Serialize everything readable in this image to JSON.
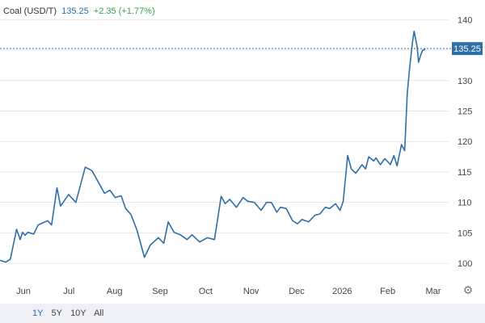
{
  "header": {
    "symbol": "Coal (USD/T)",
    "price": "135.25",
    "change": "+2.35 (+1.77%)",
    "change_color": "#3aa34a"
  },
  "ranges": {
    "items": [
      "1Y",
      "5Y",
      "10Y",
      "All"
    ],
    "active": "1Y"
  },
  "settings_icon": "gear-icon",
  "colors": {
    "line": "#2f6fa8",
    "grid": "#e6e6e6",
    "price_label_bg": "#2f6fa8"
  },
  "chart_data": {
    "type": "line",
    "title": "Coal (USD/T)",
    "xlabel": "",
    "ylabel": "",
    "ylim": [
      97.5,
      141.5
    ],
    "yticks": [
      100,
      105,
      110,
      115,
      120,
      125,
      130,
      135,
      140
    ],
    "xtick_labels": [
      "Jun",
      "Jul",
      "Aug",
      "Sep",
      "Oct",
      "Nov",
      "Dec",
      "2026",
      "Feb",
      "Mar"
    ],
    "grid": true,
    "last_price": 135.25,
    "last_price_label": "135.25",
    "series": [
      {
        "x": [
          0,
          1.3,
          2.3,
          3.7,
          4.5,
          5.0,
          5.6,
          6.2,
          7.5,
          8.5,
          10.6,
          11.5,
          12.7,
          13.5,
          15.3,
          16.9,
          19.0,
          20.5,
          23.3,
          24.5,
          25.7,
          27.0,
          28.0,
          29.2,
          30.5,
          32.2,
          33.5,
          35.3,
          36.5,
          37.5,
          38.8,
          40.2,
          41.7,
          42.8,
          44.5,
          46.2,
          47.8,
          49.3,
          50.2,
          51.2,
          52.7,
          54.2,
          55.2,
          56.7,
          58.2,
          59.4,
          60.5,
          61.7,
          62.5,
          63.8,
          65.2,
          66.3,
          67.3,
          68.8,
          70.2,
          71.3,
          72.5,
          73.5,
          74.8,
          75.8,
          76.5,
          77.5,
          78.3,
          79.3,
          80.7,
          81.5,
          82.2,
          83.3,
          83.8,
          84.8,
          85.8,
          87.0,
          87.8,
          88.5,
          89.5,
          90.2,
          90.8,
          91.3,
          91.9,
          92.3,
          93.0,
          93.3,
          93.7,
          94.2,
          94.5,
          94.8
        ],
        "y": [
          100.5,
          100.2,
          100.7,
          105.6,
          103.9,
          105.1,
          104.6,
          105.1,
          104.8,
          106.3,
          107.0,
          106.3,
          112.4,
          109.4,
          111.3,
          110.0,
          115.8,
          115.2,
          111.5,
          112.0,
          110.8,
          111.1,
          109.0,
          108.0,
          105.5,
          101.0,
          103.0,
          104.2,
          103.3,
          106.8,
          105.1,
          104.7,
          103.9,
          104.7,
          103.5,
          104.2,
          103.9,
          111.0,
          109.8,
          110.5,
          109.2,
          110.8,
          110.2,
          110.0,
          108.7,
          110.0,
          110.0,
          108.4,
          109.2,
          109.0,
          107.0,
          106.5,
          107.2,
          106.8,
          107.9,
          108.1,
          109.2,
          109.0,
          109.8,
          108.7,
          110.2,
          117.7,
          115.5,
          114.8,
          116.2,
          115.5,
          117.5,
          116.8,
          117.3,
          116.2,
          117.2,
          116.2,
          117.7,
          116.0,
          119.5,
          118.5,
          128.0,
          132.0,
          136.0,
          138.1,
          135.5,
          133.0,
          134.0,
          135.0,
          135.0,
          135.25
        ]
      }
    ]
  }
}
